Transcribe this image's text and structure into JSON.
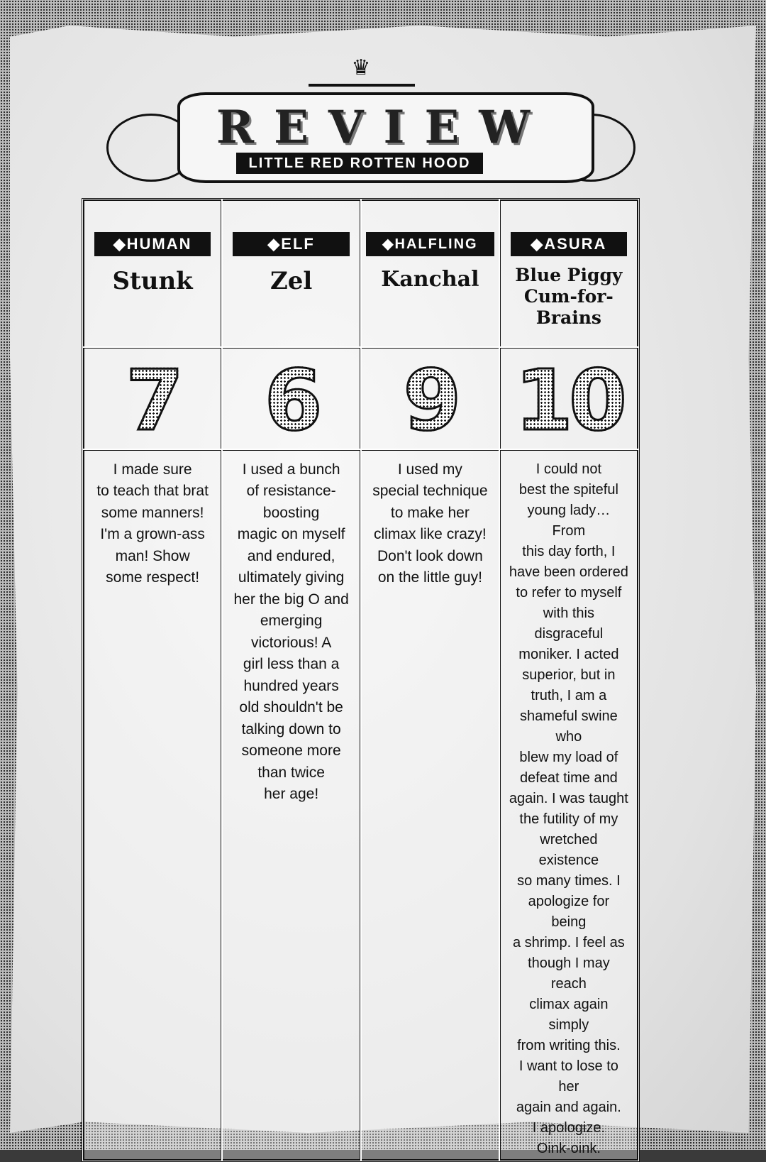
{
  "header": {
    "title": "REVIEW",
    "subtitle": "LITTLE RED ROTTEN HOOD",
    "crown_glyph": "♛"
  },
  "reviewers": [
    {
      "race": "◆HUMAN",
      "name": "Stunk",
      "score": "7",
      "comment": "I made sure\nto teach that brat\nsome manners!\nI'm a grown-ass\nman! Show\nsome respect!"
    },
    {
      "race": "◆ELF",
      "name": "Zel",
      "score": "6",
      "comment": "I used a bunch\nof resistance-\nboosting\nmagic on myself\nand endured,\nultimately giving\nher the big O and\nemerging\nvictorious! A\ngirl less than a\nhundred years\nold shouldn't be\ntalking down to\nsomeone more\nthan twice\nher age!"
    },
    {
      "race": "◆HALFLING",
      "name": "Kanchal",
      "score": "9",
      "comment": "I used my\nspecial technique\nto make her\nclimax like crazy!\nDon't look down\non the little guy!"
    },
    {
      "race": "◆ASURA",
      "name": "Blue Piggy\nCum-for-\nBrains",
      "score": "10",
      "comment": "I could not\nbest the spiteful\nyoung lady… From\nthis day forth, I\nhave been ordered\nto refer to myself\nwith this disgraceful\nmoniker. I acted\nsuperior, but in\ntruth, I am a\nshameful swine who\nblew my load of\ndefeat time and\nagain. I was taught\nthe futility of my\nwretched existence\nso many times. I\napologize for being\na shrimp. I feel as\nthough I may reach\nclimax again simply\nfrom writing this.\nI want to lose to her\nagain and again.\nI apologize.\nOink-oink."
    }
  ]
}
